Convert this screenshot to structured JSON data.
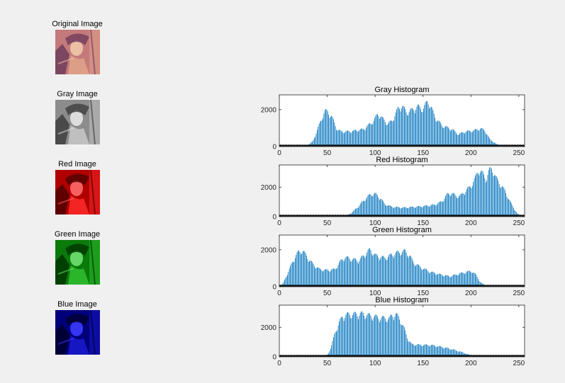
{
  "images": [
    {
      "title": "Original Image",
      "tint": "original"
    },
    {
      "title": "Gray Image",
      "tint": "gray"
    },
    {
      "title": "Red Image",
      "tint": "red"
    },
    {
      "title": "Green Image",
      "tint": "green"
    },
    {
      "title": "Blue Image",
      "tint": "blue"
    }
  ],
  "colors": {
    "bar": "#0072bd",
    "figure_bg": "#f0f0f0",
    "axes_bg": "#ffffff",
    "axis": "#262626"
  },
  "chart_data": [
    {
      "type": "bar",
      "title": "Gray Histogram",
      "xlim": [
        0,
        256
      ],
      "ylim": [
        0,
        2800
      ],
      "xticks": [
        0,
        50,
        100,
        150,
        200,
        250
      ],
      "yticks": [
        0,
        2000
      ],
      "profile": [
        [
          0,
          0
        ],
        [
          28,
          0
        ],
        [
          35,
          300
        ],
        [
          42,
          1300
        ],
        [
          47,
          2000
        ],
        [
          50,
          2050
        ],
        [
          55,
          1700
        ],
        [
          60,
          1000
        ],
        [
          65,
          850
        ],
        [
          75,
          880
        ],
        [
          88,
          1000
        ],
        [
          98,
          1450
        ],
        [
          103,
          1900
        ],
        [
          108,
          1600
        ],
        [
          113,
          1300
        ],
        [
          118,
          1500
        ],
        [
          124,
          2200
        ],
        [
          128,
          2350
        ],
        [
          133,
          1950
        ],
        [
          140,
          2150
        ],
        [
          145,
          2300
        ],
        [
          150,
          2150
        ],
        [
          155,
          2650
        ],
        [
          158,
          2300
        ],
        [
          163,
          1650
        ],
        [
          170,
          1200
        ],
        [
          180,
          1000
        ],
        [
          187,
          700
        ],
        [
          193,
          850
        ],
        [
          200,
          900
        ],
        [
          205,
          950
        ],
        [
          210,
          1050
        ],
        [
          215,
          900
        ],
        [
          220,
          400
        ],
        [
          228,
          100
        ],
        [
          240,
          0
        ],
        [
          256,
          0
        ]
      ]
    },
    {
      "type": "bar",
      "title": "Red Histogram",
      "xlim": [
        0,
        256
      ],
      "ylim": [
        0,
        3500
      ],
      "xticks": [
        0,
        50,
        100,
        150,
        200,
        250
      ],
      "yticks": [
        0,
        2000
      ],
      "profile": [
        [
          0,
          0
        ],
        [
          68,
          0
        ],
        [
          75,
          250
        ],
        [
          82,
          700
        ],
        [
          90,
          1300
        ],
        [
          95,
          1600
        ],
        [
          100,
          1650
        ],
        [
          106,
          1300
        ],
        [
          110,
          900
        ],
        [
          118,
          700
        ],
        [
          130,
          650
        ],
        [
          150,
          750
        ],
        [
          162,
          850
        ],
        [
          170,
          1100
        ],
        [
          175,
          1600
        ],
        [
          180,
          1700
        ],
        [
          185,
          1450
        ],
        [
          190,
          1550
        ],
        [
          195,
          1900
        ],
        [
          200,
          2200
        ],
        [
          205,
          2850
        ],
        [
          208,
          3400
        ],
        [
          212,
          3100
        ],
        [
          216,
          2700
        ],
        [
          219,
          3300
        ],
        [
          222,
          3500
        ],
        [
          226,
          2800
        ],
        [
          231,
          2300
        ],
        [
          236,
          1800
        ],
        [
          240,
          1200
        ],
        [
          244,
          700
        ],
        [
          248,
          250
        ],
        [
          252,
          50
        ],
        [
          256,
          0
        ]
      ]
    },
    {
      "type": "bar",
      "title": "Green Histogram",
      "xlim": [
        0,
        256
      ],
      "ylim": [
        0,
        2800
      ],
      "xticks": [
        0,
        50,
        100,
        150,
        200,
        250
      ],
      "yticks": [
        0,
        2000
      ],
      "profile": [
        [
          0,
          0
        ],
        [
          4,
          200
        ],
        [
          8,
          700
        ],
        [
          12,
          1200
        ],
        [
          16,
          1700
        ],
        [
          20,
          2000
        ],
        [
          24,
          2100
        ],
        [
          28,
          1800
        ],
        [
          35,
          1300
        ],
        [
          42,
          1000
        ],
        [
          50,
          950
        ],
        [
          58,
          1000
        ],
        [
          63,
          1400
        ],
        [
          68,
          1700
        ],
        [
          75,
          1600
        ],
        [
          83,
          1500
        ],
        [
          90,
          1900
        ],
        [
          95,
          2150
        ],
        [
          100,
          1800
        ],
        [
          110,
          1650
        ],
        [
          120,
          1900
        ],
        [
          126,
          2000
        ],
        [
          131,
          2050
        ],
        [
          136,
          1800
        ],
        [
          140,
          1400
        ],
        [
          148,
          1100
        ],
        [
          158,
          850
        ],
        [
          168,
          700
        ],
        [
          178,
          600
        ],
        [
          188,
          750
        ],
        [
          195,
          850
        ],
        [
          201,
          900
        ],
        [
          205,
          700
        ],
        [
          210,
          250
        ],
        [
          216,
          50
        ],
        [
          222,
          0
        ],
        [
          256,
          0
        ]
      ]
    },
    {
      "type": "bar",
      "title": "Blue Histogram",
      "xlim": [
        0,
        256
      ],
      "ylim": [
        0,
        3500
      ],
      "xticks": [
        0,
        50,
        100,
        150,
        200,
        250
      ],
      "yticks": [
        0,
        2000
      ],
      "profile": [
        [
          0,
          0
        ],
        [
          48,
          0
        ],
        [
          51,
          200
        ],
        [
          54,
          700
        ],
        [
          58,
          1700
        ],
        [
          62,
          2400
        ],
        [
          66,
          2900
        ],
        [
          72,
          3050
        ],
        [
          78,
          3050
        ],
        [
          85,
          3100
        ],
        [
          95,
          2950
        ],
        [
          105,
          2800
        ],
        [
          115,
          2750
        ],
        [
          118,
          3000
        ],
        [
          122,
          3050
        ],
        [
          126,
          2700
        ],
        [
          130,
          2100
        ],
        [
          134,
          1300
        ],
        [
          138,
          900
        ],
        [
          148,
          850
        ],
        [
          158,
          850
        ],
        [
          170,
          700
        ],
        [
          180,
          550
        ],
        [
          190,
          350
        ],
        [
          198,
          150
        ],
        [
          204,
          50
        ],
        [
          210,
          0
        ],
        [
          256,
          0
        ]
      ]
    }
  ]
}
